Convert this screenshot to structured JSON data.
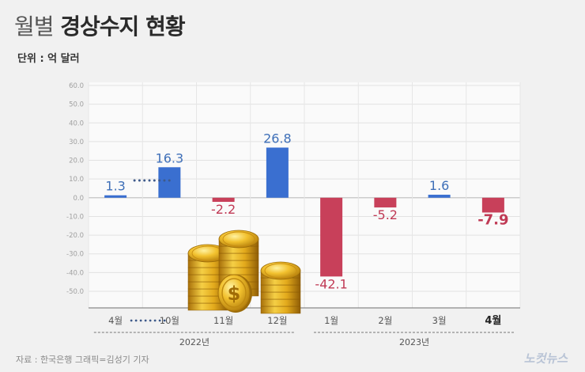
{
  "title_a": "월별",
  "title_b": "경상수지 현황",
  "unit_label": "단위 : 억 달러",
  "source": "자료 : 한국은행    그래픽=김성기 기자",
  "logo": "노컷뉴스",
  "chart_data": {
    "type": "bar",
    "categories": [
      "4월",
      "10월",
      "11월",
      "12월",
      "1월",
      "2월",
      "3월",
      "4월"
    ],
    "values": [
      1.3,
      16.3,
      -2.2,
      26.8,
      -42.1,
      -5.2,
      1.6,
      -7.9
    ],
    "value_labels": [
      "1.3",
      "16.3",
      "-2.2",
      "26.8",
      "-42.1",
      "-5.2",
      "1.6",
      "-7.9"
    ],
    "year_groups": [
      {
        "label": "2022년",
        "categories": [
          "4월",
          "10월",
          "11월",
          "12월"
        ]
      },
      {
        "label": "2023년",
        "categories": [
          "1월",
          "2월",
          "3월",
          "4월"
        ]
      }
    ],
    "yticks": [
      "60.0",
      "50.0",
      "40.0",
      "30.0",
      "20.0",
      "10.0",
      "0.0",
      "-10.0",
      "-20.0",
      "-30.0",
      "-40.0",
      "-50.0"
    ],
    "ylim": [
      -60,
      60
    ],
    "grid": true,
    "colors": {
      "positive": "#3a6fd0",
      "negative": "#c8405a",
      "positive_label": "#3e6fb8",
      "negative_label": "#c03a55"
    },
    "highlighted_category": "4월 (2023)"
  }
}
